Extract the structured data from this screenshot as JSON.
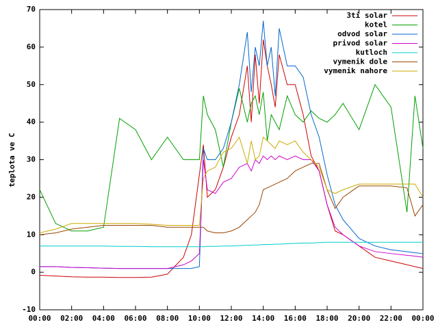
{
  "chart_data": {
    "type": "line",
    "y_label": "teplota ve C",
    "grid": false,
    "legend": "upper right",
    "x": [
      0,
      1,
      2,
      3,
      4,
      5,
      6,
      7,
      8,
      9,
      9.5,
      10,
      10.25,
      10.5,
      11,
      11.5,
      12,
      12.5,
      13,
      13.25,
      13.5,
      13.75,
      14,
      14.25,
      14.5,
      14.75,
      15,
      15.5,
      16,
      16.5,
      17,
      17.5,
      18,
      18.5,
      19,
      20,
      21,
      22,
      23,
      23.5,
      24
    ],
    "xlim": [
      0,
      24
    ],
    "xticks": [
      {
        "value": 0,
        "label": "00:00"
      },
      {
        "value": 2,
        "label": "02:00"
      },
      {
        "value": 4,
        "label": "04:00"
      },
      {
        "value": 6,
        "label": "06:00"
      },
      {
        "value": 8,
        "label": "08:00"
      },
      {
        "value": 10,
        "label": "10:00"
      },
      {
        "value": 12,
        "label": "12:00"
      },
      {
        "value": 14,
        "label": "14:00"
      },
      {
        "value": 16,
        "label": "16:00"
      },
      {
        "value": 18,
        "label": "18:00"
      },
      {
        "value": 20,
        "label": "20:00"
      },
      {
        "value": 22,
        "label": "22:00"
      },
      {
        "value": 24,
        "label": "00:00"
      }
    ],
    "ylim": [
      -10,
      70
    ],
    "yticks": [
      -10,
      0,
      10,
      20,
      30,
      40,
      50,
      60,
      70
    ],
    "series": [
      {
        "name": "3ti solar",
        "color": "#cc0000",
        "values": [
          -0.8,
          -1,
          -1.2,
          -1.3,
          -1.3,
          -1.4,
          -1.4,
          -1.3,
          -0.5,
          4,
          10,
          26,
          34,
          20,
          22,
          28,
          36,
          42,
          55,
          40,
          58,
          45,
          62,
          55,
          50,
          44,
          58,
          50,
          50,
          42,
          31,
          27,
          18,
          11,
          10,
          7,
          4,
          3,
          2,
          1.5,
          1
        ]
      },
      {
        "name": "kotel",
        "color": "#00a000",
        "values": [
          22,
          13,
          11,
          11,
          12,
          41,
          38,
          30,
          36,
          30,
          30,
          30,
          47,
          42,
          38,
          28,
          40,
          49,
          40,
          45,
          47,
          42,
          48,
          35,
          42,
          40,
          38,
          47,
          42,
          40,
          43,
          41,
          40,
          42,
          45,
          38,
          50,
          44,
          16,
          47,
          33
        ]
      },
      {
        "name": "odvod solar",
        "color": "#0066cc",
        "values": [
          1.5,
          1.5,
          1.3,
          1.2,
          1.1,
          1,
          1,
          1,
          1,
          1,
          1,
          1.5,
          33,
          30,
          30,
          33,
          40,
          50,
          64,
          48,
          60,
          55,
          67,
          55,
          60,
          47,
          65,
          55,
          55,
          52,
          42,
          36,
          26,
          18,
          14,
          9,
          7,
          6,
          5.5,
          5.2,
          5
        ]
      },
      {
        "name": "privod solar",
        "color": "#cc00cc",
        "values": [
          1.5,
          1.5,
          1.3,
          1.2,
          1.1,
          1,
          1,
          1,
          1,
          2,
          3,
          5,
          30,
          22,
          21,
          24,
          25,
          28,
          29,
          27,
          30,
          29,
          31,
          30,
          31,
          30,
          31,
          30,
          31,
          30,
          30,
          27,
          18,
          12,
          10,
          7,
          5.5,
          5,
          4.5,
          4.3,
          4
        ]
      },
      {
        "name": "kutloch",
        "color": "#00cccc",
        "values": [
          7,
          7,
          7,
          7,
          7,
          6.9,
          6.9,
          6.8,
          6.8,
          6.8,
          6.8,
          6.8,
          6.8,
          6.9,
          6.9,
          7,
          7,
          7.1,
          7.2,
          7.2,
          7.3,
          7.3,
          7.4,
          7.4,
          7.4,
          7.5,
          7.5,
          7.6,
          7.7,
          7.8,
          7.8,
          7.9,
          8,
          8,
          8,
          8,
          8,
          8,
          8,
          8,
          8
        ]
      },
      {
        "name": "vymenik dole",
        "color": "#994400",
        "values": [
          10,
          10.5,
          11.5,
          12,
          12.5,
          12.5,
          12.5,
          12.5,
          12,
          12,
          12,
          12,
          12,
          11,
          10.5,
          10.5,
          11,
          12,
          14,
          15,
          16,
          18,
          22,
          22.5,
          23,
          23.5,
          24,
          25,
          27,
          28,
          29,
          29,
          22,
          17,
          20,
          23,
          23,
          23,
          22.5,
          15,
          18
        ]
      },
      {
        "name": "vymenik nahore",
        "color": "#ccaa00",
        "values": [
          10.5,
          11.5,
          13,
          13,
          13,
          13,
          13,
          12.8,
          12.5,
          12.5,
          12.5,
          12.5,
          25,
          27,
          28,
          32,
          33,
          36,
          29,
          35,
          30,
          31,
          36,
          35,
          34,
          33,
          35,
          34,
          35,
          32,
          30,
          28,
          22,
          21,
          22,
          23.5,
          23.5,
          23.5,
          23.5,
          23.5,
          20
        ]
      }
    ]
  }
}
